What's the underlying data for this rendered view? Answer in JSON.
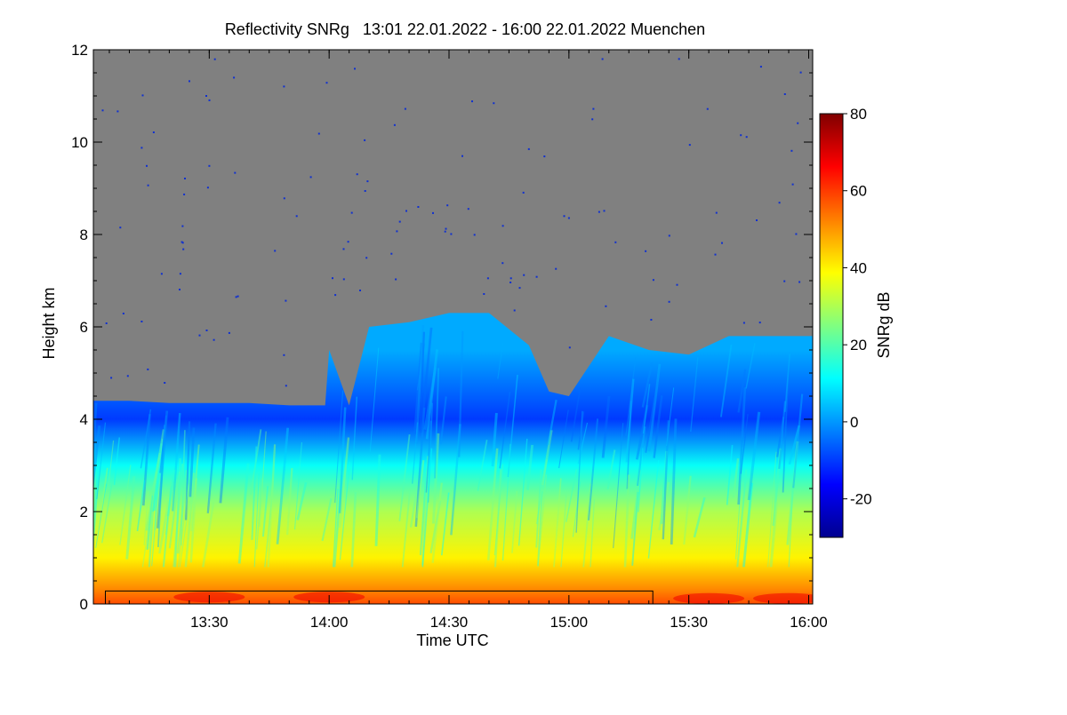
{
  "chart_data": {
    "type": "heatmap",
    "title": "Reflectivity SNRg   13:01 22.01.2022 - 16:00 22.01.2022 Muenchen",
    "xlabel": "Time UTC",
    "ylabel": "Height km",
    "colorbar_label": "SNRg dB",
    "xlim": [
      "13:01",
      "16:01"
    ],
    "x_ticks": [
      "13:30",
      "14:00",
      "14:30",
      "15:00",
      "15:30",
      "16:00"
    ],
    "ylim": [
      0,
      12
    ],
    "y_ticks": [
      0,
      2,
      4,
      6,
      8,
      10,
      12
    ],
    "colorbar_range": [
      -30,
      80
    ],
    "colorbar_ticks": [
      -20,
      0,
      20,
      40,
      60,
      80
    ],
    "colormap": [
      "#00008f",
      "#0000ff",
      "#0080ff",
      "#00ffff",
      "#80ff80",
      "#ffff00",
      "#ff8000",
      "#ff0000",
      "#800000"
    ],
    "no_signal_color": "#808080",
    "echo_top_km": [
      [
        "13:01",
        4.4
      ],
      [
        "13:10",
        4.4
      ],
      [
        "13:20",
        4.35
      ],
      [
        "13:30",
        4.35
      ],
      [
        "13:40",
        4.35
      ],
      [
        "13:50",
        4.3
      ],
      [
        "13:59",
        4.3
      ],
      [
        "14:00",
        5.5
      ],
      [
        "14:05",
        4.3
      ],
      [
        "14:10",
        6.0
      ],
      [
        "14:20",
        6.1
      ],
      [
        "14:30",
        6.3
      ],
      [
        "14:40",
        6.3
      ],
      [
        "14:50",
        5.6
      ],
      [
        "14:55",
        4.6
      ],
      [
        "15:00",
        4.5
      ],
      [
        "15:10",
        5.8
      ],
      [
        "15:20",
        5.5
      ],
      [
        "15:30",
        5.4
      ],
      [
        "15:40",
        5.8
      ],
      [
        "15:50",
        5.8
      ],
      [
        "16:00",
        5.8
      ]
    ],
    "snr_profile": [
      {
        "height_km": 0.0,
        "snr_db": 58
      },
      {
        "height_km": 0.3,
        "snr_db": 52
      },
      {
        "height_km": 1.0,
        "snr_db": 40
      },
      {
        "height_km": 2.0,
        "snr_db": 30
      },
      {
        "height_km": 3.0,
        "snr_db": 12
      },
      {
        "height_km": 4.0,
        "snr_db": -10
      },
      {
        "height_km": 5.5,
        "snr_db": 2
      }
    ],
    "overlay_box": {
      "start": "13:04",
      "end": "15:21",
      "top_km": 0.28
    },
    "grid": false,
    "legend": "colorbar-right"
  }
}
